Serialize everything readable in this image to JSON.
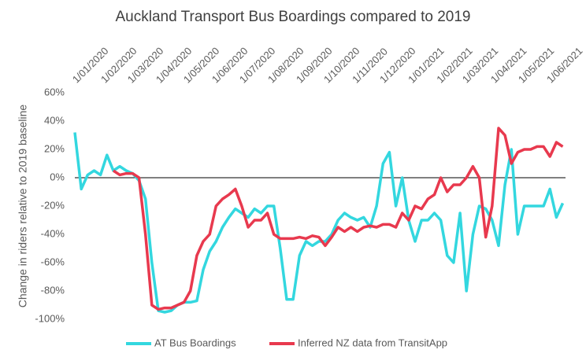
{
  "chart_data": {
    "type": "line",
    "title": "Auckland Transport Bus Boardings compared to 2019",
    "y_label": "Change in riders relative to 2019 baseline",
    "x": [
      "2020-01-01",
      "2020-01-08",
      "2020-01-15",
      "2020-01-22",
      "2020-01-29",
      "2020-02-05",
      "2020-02-12",
      "2020-02-19",
      "2020-02-26",
      "2020-03-04",
      "2020-03-11",
      "2020-03-18",
      "2020-03-25",
      "2020-04-01",
      "2020-04-08",
      "2020-04-15",
      "2020-04-22",
      "2020-04-29",
      "2020-05-06",
      "2020-05-13",
      "2020-05-20",
      "2020-05-27",
      "2020-06-03",
      "2020-06-10",
      "2020-06-17",
      "2020-06-24",
      "2020-07-01",
      "2020-07-08",
      "2020-07-15",
      "2020-07-22",
      "2020-07-29",
      "2020-08-05",
      "2020-08-12",
      "2020-08-19",
      "2020-08-26",
      "2020-09-02",
      "2020-09-09",
      "2020-09-16",
      "2020-09-23",
      "2020-09-30",
      "2020-10-07",
      "2020-10-14",
      "2020-10-21",
      "2020-10-28",
      "2020-11-04",
      "2020-11-11",
      "2020-11-18",
      "2020-11-25",
      "2020-12-02",
      "2020-12-09",
      "2020-12-16",
      "2020-12-23",
      "2020-12-30",
      "2021-01-06",
      "2021-01-13",
      "2021-01-20",
      "2021-01-27",
      "2021-02-03",
      "2021-02-10",
      "2021-02-17",
      "2021-02-24",
      "2021-03-03",
      "2021-03-10",
      "2021-03-17",
      "2021-03-24",
      "2021-03-31",
      "2021-04-07",
      "2021-04-14",
      "2021-04-21",
      "2021-04-28",
      "2021-05-05",
      "2021-05-12",
      "2021-05-19",
      "2021-05-26",
      "2021-06-02",
      "2021-06-09",
      "2021-06-16"
    ],
    "series": [
      {
        "name": "AT Bus Boardings",
        "color": "#33d7df",
        "values": [
          32,
          -8,
          2,
          5,
          2,
          16,
          5,
          8,
          5,
          3,
          -2,
          -15,
          -60,
          -94,
          -95,
          -94,
          -90,
          -88,
          -88,
          -87,
          -65,
          -52,
          -45,
          -35,
          -28,
          -22,
          -25,
          -28,
          -22,
          -25,
          -20,
          -20,
          -50,
          -86,
          -86,
          -55,
          -45,
          -48,
          -45,
          -45,
          -40,
          -30,
          -25,
          -28,
          -30,
          -28,
          -35,
          -20,
          10,
          18,
          -20,
          0,
          -30,
          -45,
          -30,
          -30,
          -25,
          -30,
          -55,
          -60,
          -25,
          -80,
          -40,
          -20,
          -22,
          -30,
          -48,
          -5,
          20,
          -40,
          -20,
          -20,
          -20,
          -20,
          -8,
          -28,
          -18
        ]
      },
      {
        "name": "Inferred NZ data from TransitApp",
        "color": "#e8394e",
        "values": [
          null,
          null,
          null,
          null,
          null,
          null,
          5,
          2,
          3,
          3,
          0,
          -40,
          -90,
          -93,
          -92,
          -92,
          -90,
          -88,
          -80,
          -55,
          -45,
          -40,
          -20,
          -15,
          -12,
          -8,
          -20,
          -35,
          -30,
          -30,
          -25,
          -40,
          -43,
          -43,
          -43,
          -42,
          -43,
          -41,
          -42,
          -48,
          -42,
          -35,
          -38,
          -35,
          -38,
          -35,
          -34,
          -35,
          -33,
          -33,
          -35,
          -25,
          -30,
          -20,
          -22,
          -15,
          -12,
          0,
          -10,
          -5,
          -5,
          0,
          8,
          0,
          -42,
          -20,
          35,
          30,
          10,
          18,
          20,
          20,
          22,
          22,
          15,
          25,
          22
        ]
      }
    ],
    "xlim": [
      "2020-01-01",
      "2021-06-19"
    ],
    "xticks": [
      {
        "value": "2020-01-01",
        "label": "1/01/2020"
      },
      {
        "value": "2020-02-01",
        "label": "1/02/2020"
      },
      {
        "value": "2020-03-01",
        "label": "1/03/2020"
      },
      {
        "value": "2020-04-01",
        "label": "1/04/2020"
      },
      {
        "value": "2020-05-01",
        "label": "1/05/2020"
      },
      {
        "value": "2020-06-01",
        "label": "1/06/2020"
      },
      {
        "value": "2020-07-01",
        "label": "1/07/2020"
      },
      {
        "value": "2020-08-01",
        "label": "1/08/2020"
      },
      {
        "value": "2020-09-01",
        "label": "1/09/2020"
      },
      {
        "value": "2020-10-01",
        "label": "1/10/2020"
      },
      {
        "value": "2020-11-01",
        "label": "1/11/2020"
      },
      {
        "value": "2020-12-01",
        "label": "1/12/2020"
      },
      {
        "value": "2021-01-01",
        "label": "1/01/2021"
      },
      {
        "value": "2021-02-01",
        "label": "1/02/2021"
      },
      {
        "value": "2021-03-01",
        "label": "1/03/2021"
      },
      {
        "value": "2021-04-01",
        "label": "1/04/2021"
      },
      {
        "value": "2021-05-01",
        "label": "1/05/2021"
      },
      {
        "value": "2021-06-01",
        "label": "1/06/2021"
      }
    ],
    "ylim": [
      -100,
      60
    ],
    "yticks": [
      {
        "value": -100,
        "label": "-100%"
      },
      {
        "value": -80,
        "label": "-80%"
      },
      {
        "value": -60,
        "label": "-60%"
      },
      {
        "value": -40,
        "label": "-40%"
      },
      {
        "value": -20,
        "label": "-20%"
      },
      {
        "value": 0,
        "label": "0%"
      },
      {
        "value": 20,
        "label": "20%"
      },
      {
        "value": 40,
        "label": "40%"
      },
      {
        "value": 60,
        "label": "60%"
      }
    ],
    "zero_line": true,
    "grid": false,
    "legend": "bottom"
  }
}
